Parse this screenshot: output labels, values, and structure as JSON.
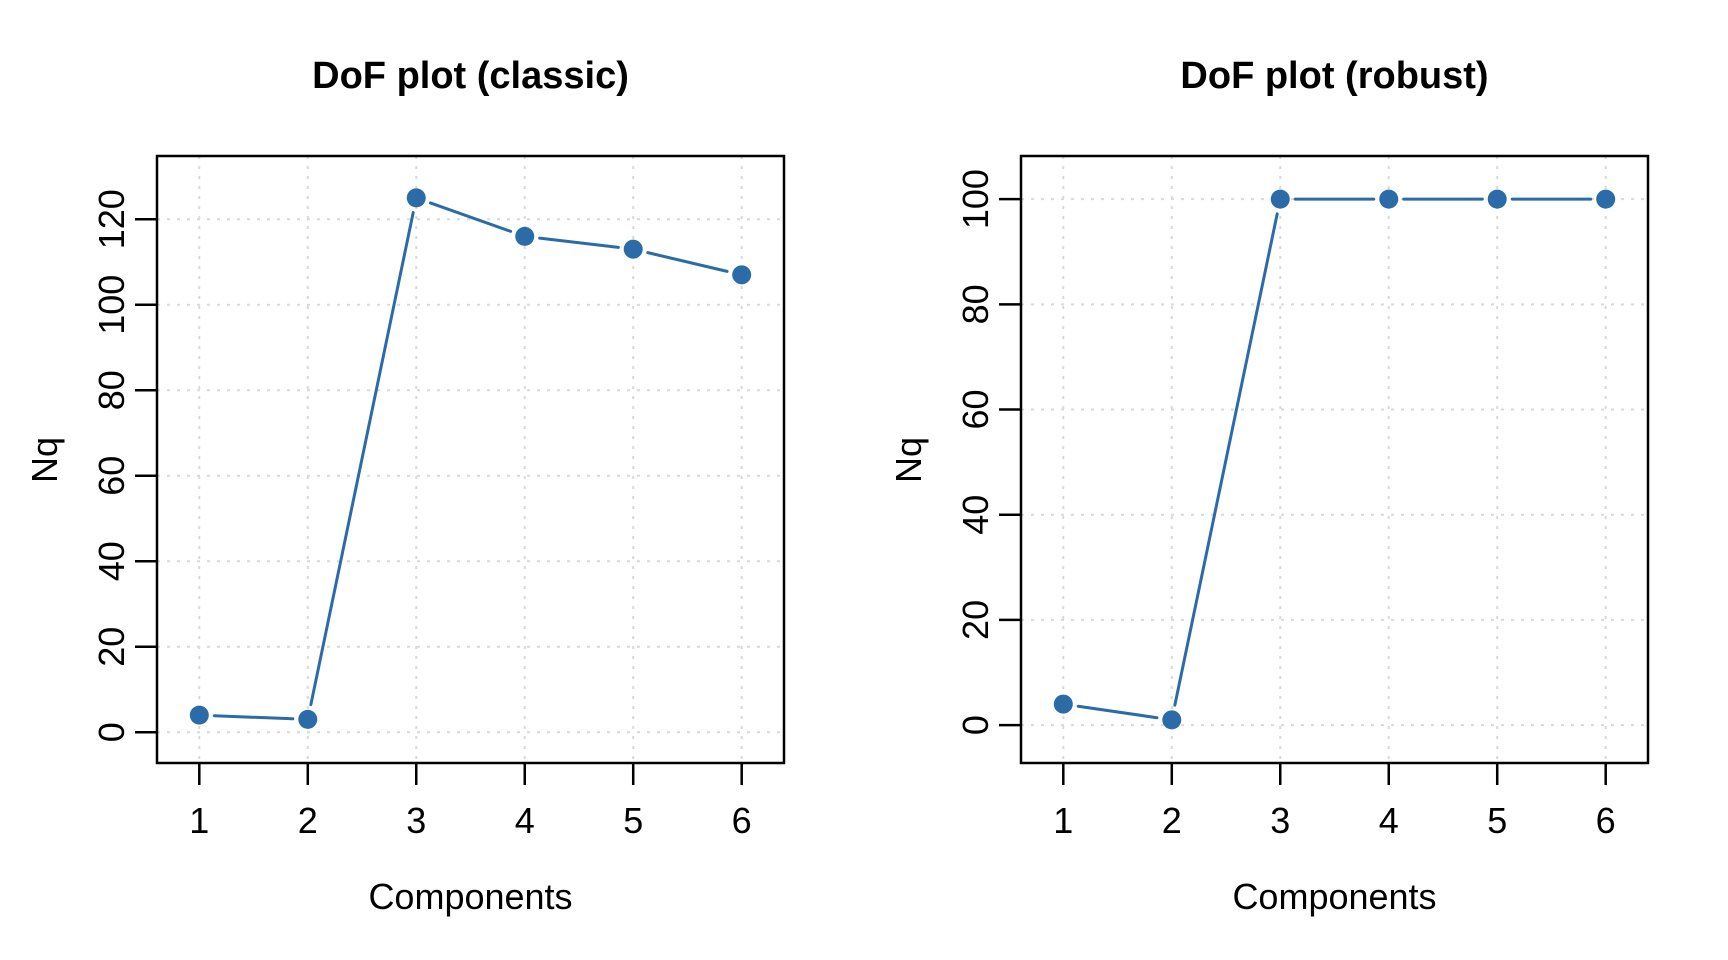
{
  "page": {
    "background": "#ffffff"
  },
  "style": {
    "series_color": "#2b6ca8",
    "grid_color": "#d9d9d9",
    "axis_color": "#000000",
    "text_color": "#000000"
  },
  "chart_data": [
    {
      "type": "line",
      "title": "DoF plot (classic)",
      "xlabel": "Components",
      "ylabel": "Nq",
      "x": [
        1,
        2,
        3,
        4,
        5,
        6
      ],
      "values": [
        4,
        3,
        125,
        116,
        113,
        107
      ],
      "xticks": [
        1,
        2,
        3,
        4,
        5,
        6
      ],
      "yticks": [
        0,
        20,
        40,
        60,
        80,
        100,
        120
      ],
      "xlim": [
        0.61,
        6.39
      ],
      "ylim": [
        -7.2,
        134.8
      ],
      "grid": "dotted",
      "legend_position": "none",
      "marker": "filled-circle",
      "line_style": "segments-with-gaps",
      "series_color": "#2b6ca8"
    },
    {
      "type": "line",
      "title": "DoF plot (robust)",
      "xlabel": "Components",
      "ylabel": "Nq",
      "x": [
        1,
        2,
        3,
        4,
        5,
        6
      ],
      "values": [
        4,
        1,
        100,
        100,
        100,
        100
      ],
      "xticks": [
        1,
        2,
        3,
        4,
        5,
        6
      ],
      "yticks": [
        0,
        20,
        40,
        60,
        80,
        100
      ],
      "xlim": [
        0.61,
        6.39
      ],
      "ylim": [
        -7.2,
        108.2
      ],
      "grid": "dotted",
      "legend_position": "none",
      "marker": "filled-circle",
      "line_style": "segments-with-gaps",
      "series_color": "#2b6ca8"
    }
  ]
}
